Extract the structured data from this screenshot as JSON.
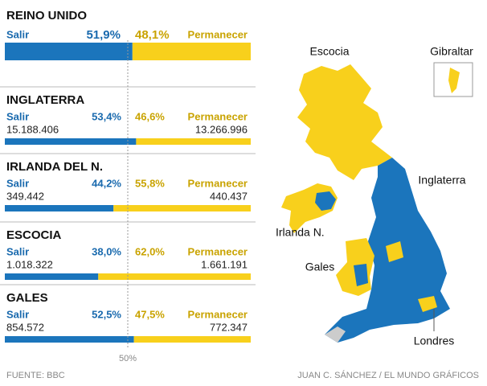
{
  "regions": [
    {
      "name": "REINO UNIDO",
      "leave_label": "Salir",
      "leave": 51.9,
      "leave_label_pct": "51,9%",
      "remain_label": "Permanecer",
      "remain": 48.1,
      "remain_label_pct": "48,1%"
    },
    {
      "name": "INGLATERRA",
      "leave_label": "Salir",
      "leave": 53.4,
      "leave_label_pct": "53,4%",
      "remain_label": "Permanecer",
      "remain": 46.6,
      "remain_label_pct": "46,6%",
      "leave_votes": "15.188.406",
      "remain_votes": "13.266.996"
    },
    {
      "name": "IRLANDA DEL N.",
      "leave_label": "Salir",
      "leave": 44.2,
      "leave_label_pct": "44,2%",
      "remain_label": "Permanecer",
      "remain": 55.8,
      "remain_label_pct": "55,8%",
      "leave_votes": "349.442",
      "remain_votes": "440.437"
    },
    {
      "name": "ESCOCIA",
      "leave_label": "Salir",
      "leave": 38.0,
      "leave_label_pct": "38,0%",
      "remain_label": "Permanecer",
      "remain": 62.0,
      "remain_label_pct": "62,0%",
      "leave_votes": "1.018.322",
      "remain_votes": "1.661.191"
    },
    {
      "name": "GALES",
      "leave_label": "Salir",
      "leave": 52.5,
      "leave_label_pct": "52,5%",
      "remain_label": "Permanecer",
      "remain": 47.5,
      "remain_label_pct": "47,5%",
      "leave_votes": "854.572",
      "remain_votes": "772.347"
    }
  ],
  "midline": {
    "value": 50,
    "label": "50%"
  },
  "colors": {
    "leave": "#1b75bc",
    "remain": "#f8d01c"
  },
  "map_labels": [
    "Escocia",
    "Gibraltar",
    "Inglaterra",
    "Irlanda N.",
    "Gales",
    "Londres"
  ],
  "footer": {
    "source": "FUENTE: BBC",
    "credit": "JUAN C. SÁNCHEZ / EL MUNDO GRÁFICOS"
  }
}
